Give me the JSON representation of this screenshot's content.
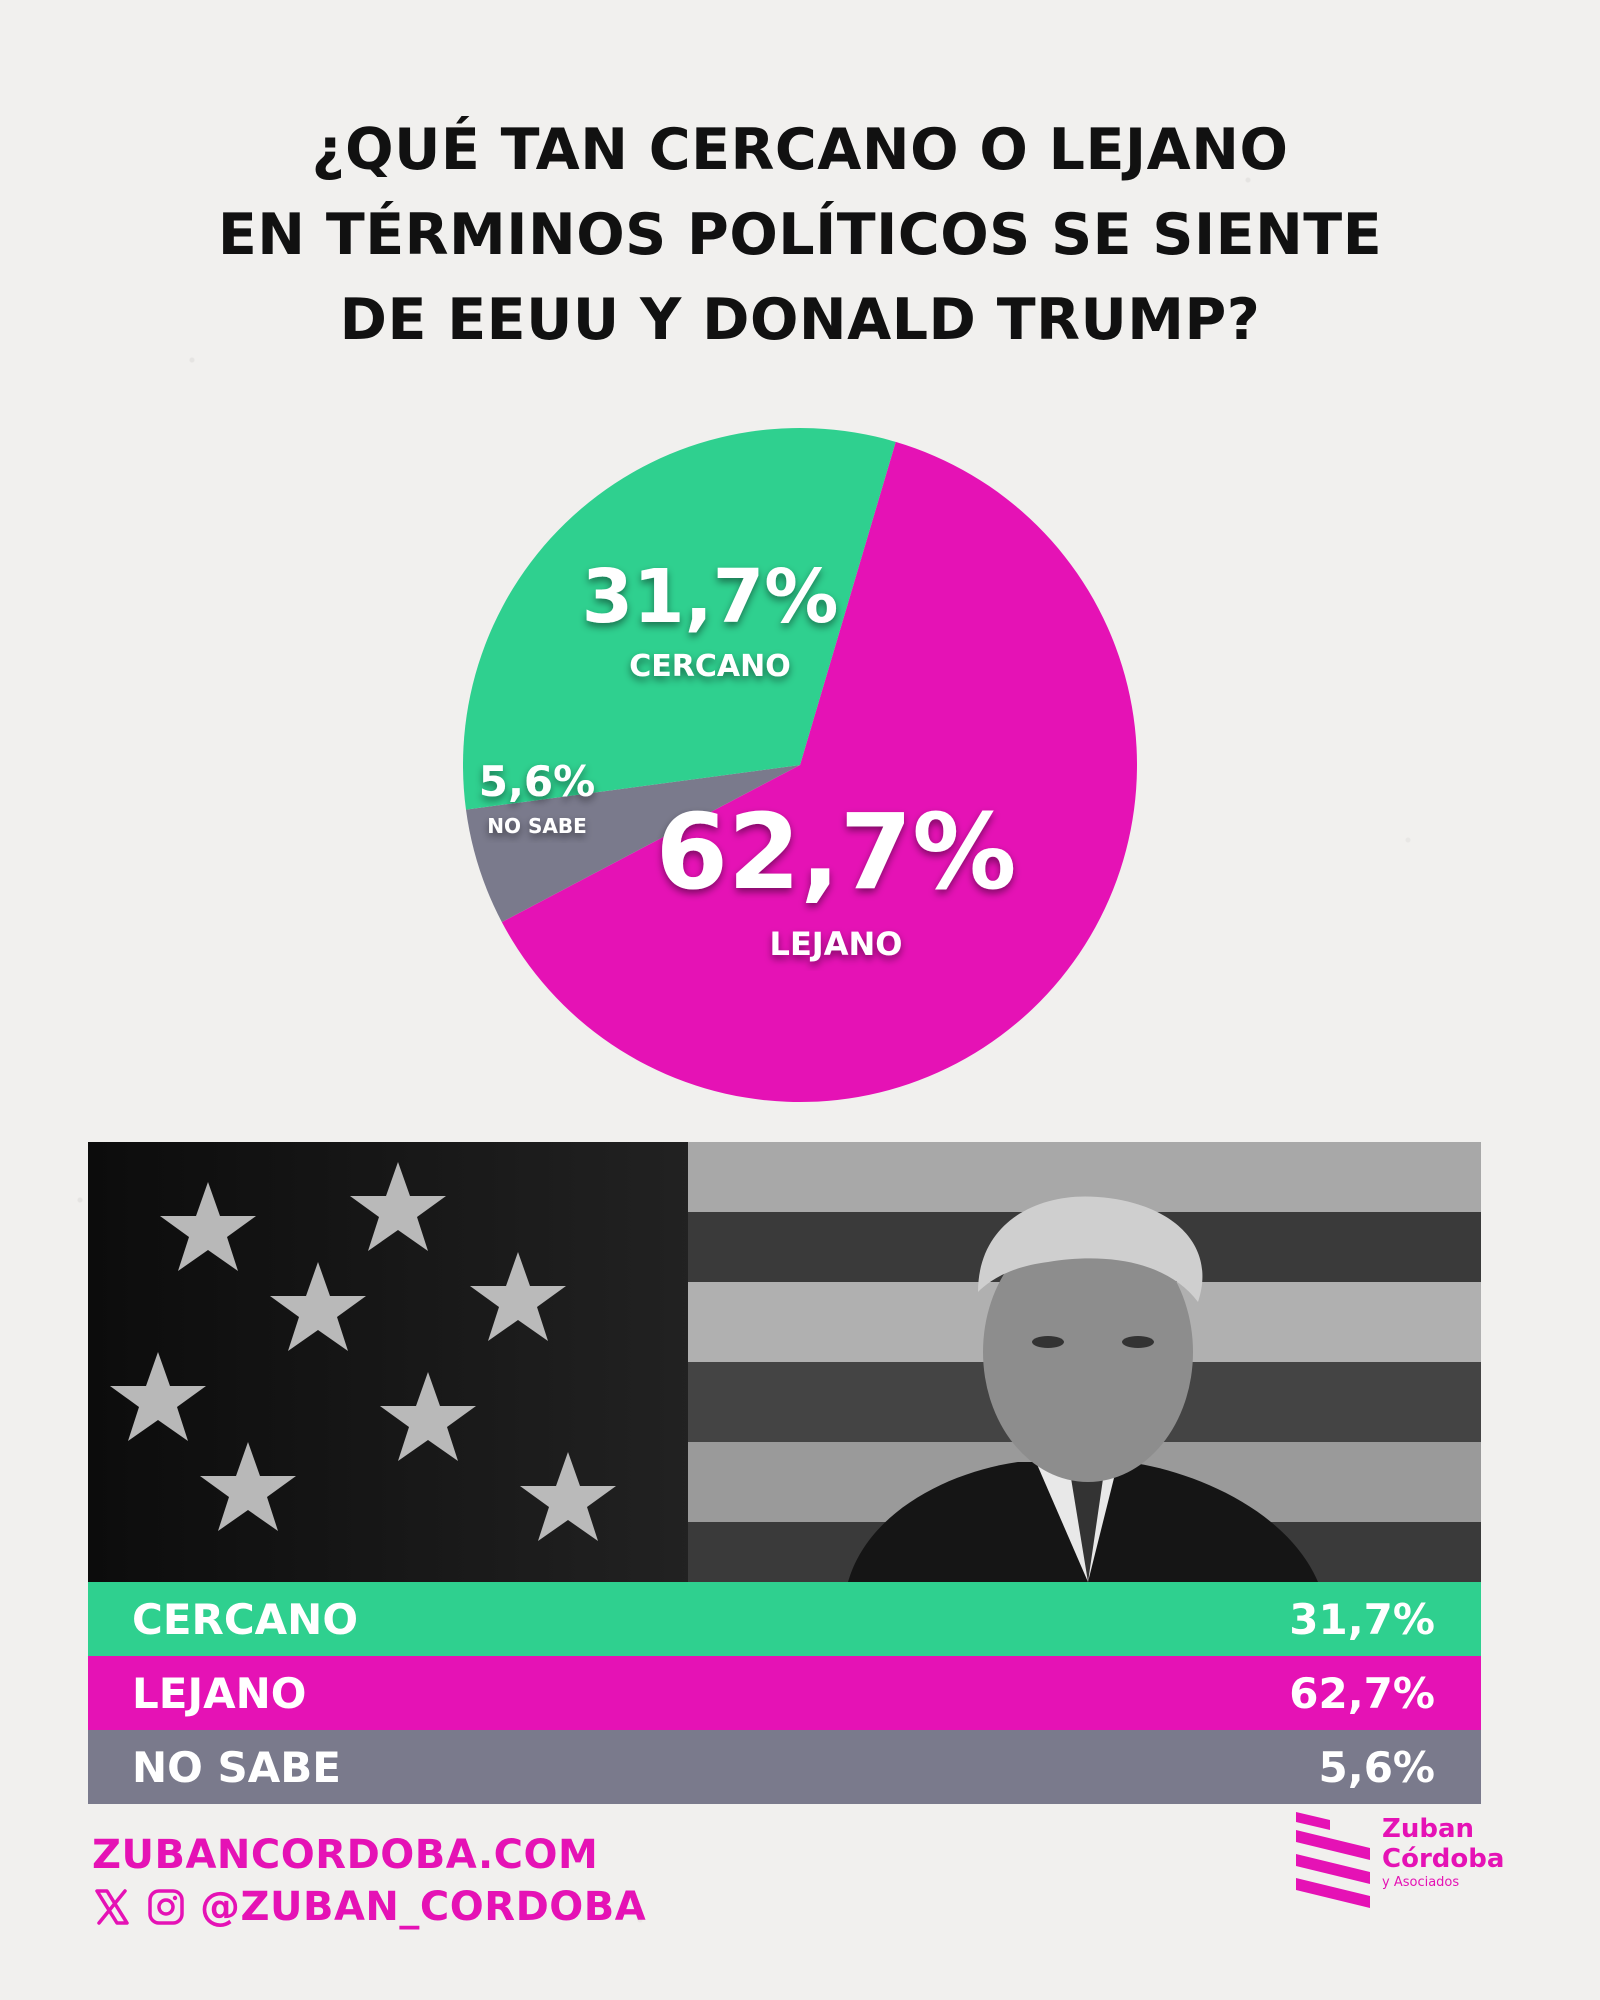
{
  "title": {
    "line1": "¿QUÉ TAN CERCANO O LEJANO",
    "line2": "EN TÉRMINOS POLÍTICOS SE SIENTE",
    "line3": "DE EEUU Y DONALD TRUMP?"
  },
  "chart_data": {
    "type": "pie",
    "title": "¿QUÉ TAN CERCANO O LEJANO EN TÉRMINOS POLÍTICOS SE SIENTE DE EEUU Y DONALD TRUMP?",
    "slices": [
      {
        "label": "CERCANO",
        "value": 31.7,
        "value_label": "31,7%",
        "color": "#2fd08f"
      },
      {
        "label": "LEJANO",
        "value": 62.7,
        "value_label": "62,7%",
        "color": "#e512b5"
      },
      {
        "label": "NO SABE",
        "value": 5.6,
        "value_label": "5,6%",
        "color": "#7a7a8c"
      }
    ]
  },
  "table": {
    "rows": [
      {
        "label": "CERCANO",
        "value": "31,7%"
      },
      {
        "label": "LEJANO",
        "value": "62,7%"
      },
      {
        "label": "NO SABE",
        "value": "5,6%"
      }
    ]
  },
  "footer": {
    "website": "ZUBANCORDOBA.COM",
    "handle": "@ZUBAN_CORDOBA",
    "icons": [
      "x-icon",
      "instagram-icon"
    ]
  },
  "logo": {
    "line1": "Zuban",
    "line2": "Córdoba",
    "line3": "y Asociados",
    "color": "#e512b5"
  },
  "photo": {
    "icon": "person-with-flag-photo"
  }
}
